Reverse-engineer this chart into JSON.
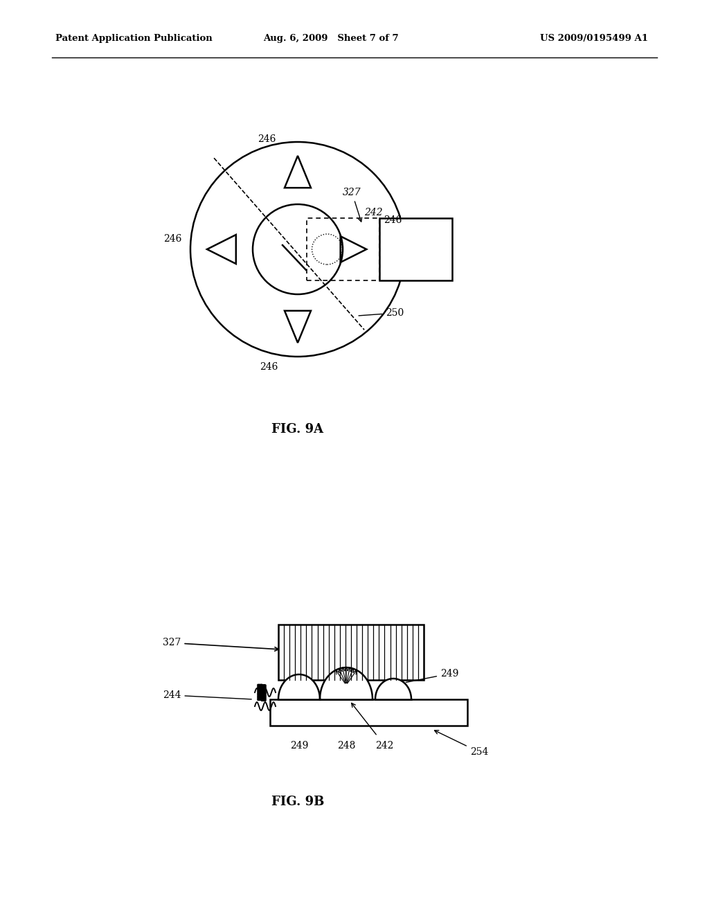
{
  "bg_color": "#ffffff",
  "line_color": "#000000",
  "header": {
    "left": "Patent Application Publication",
    "center": "Aug. 6, 2009   Sheet 7 of 7",
    "right": "US 2009/0195499 A1"
  },
  "fig9a_label": "FIG. 9A",
  "fig9b_label": "FIG. 9B"
}
